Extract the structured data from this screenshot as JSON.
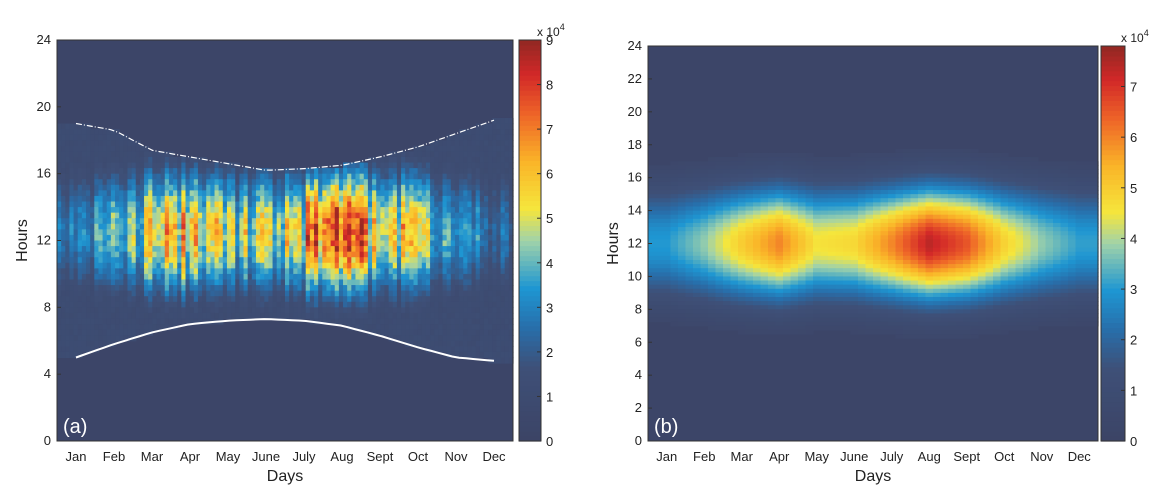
{
  "chart_data": [
    {
      "type": "heatmap",
      "panel_label": "(a)",
      "xlabel": "Days",
      "ylabel": "Hours",
      "categories": [
        "Jan",
        "Feb",
        "Mar",
        "Apr",
        "May",
        "June",
        "July",
        "Aug",
        "Sept",
        "Oct",
        "Nov",
        "Dec"
      ],
      "y_ticks": [
        0,
        4,
        8,
        12,
        16,
        20,
        24
      ],
      "ylim": [
        0,
        24
      ],
      "colorbar": {
        "ticks": [
          0,
          1,
          2,
          3,
          4,
          5,
          6,
          7,
          8,
          9
        ],
        "range": [
          0,
          9
        ],
        "exponent": "x 10",
        "exponent_power": "4"
      },
      "monthly_peak": [
        2.8,
        4.2,
        6.2,
        8.0,
        5.6,
        5.2,
        7.2,
        8.2,
        7.4,
        6.0,
        4.0,
        2.9
      ],
      "daylight_window": {
        "sunrise": [
          5.0,
          5.8,
          6.5,
          7.0,
          7.2,
          7.3,
          7.2,
          6.9,
          6.3,
          5.6,
          5.0,
          4.8
        ],
        "sunset": [
          19.0,
          18.6,
          17.4,
          17.0,
          16.6,
          16.2,
          16.3,
          16.5,
          17.0,
          17.6,
          18.4,
          19.2
        ]
      },
      "peak_hour": 12.5,
      "spread_hours": 2.6,
      "noisy": true
    },
    {
      "type": "heatmap",
      "panel_label": "(b)",
      "xlabel": "Days",
      "ylabel": "Hours",
      "categories": [
        "Jan",
        "Feb",
        "Mar",
        "Apr",
        "May",
        "June",
        "July",
        "Aug",
        "Sept",
        "Oct",
        "Nov",
        "Dec"
      ],
      "y_ticks": [
        0,
        2,
        4,
        6,
        8,
        10,
        12,
        14,
        16,
        18,
        20,
        22,
        24
      ],
      "ylim": [
        0,
        24
      ],
      "colorbar": {
        "ticks": [
          0,
          1,
          2,
          3,
          4,
          5,
          6,
          7
        ],
        "range": [
          0,
          7.8
        ],
        "exponent": "x 10",
        "exponent_power": "4"
      },
      "monthly_peak": [
        3.0,
        3.8,
        5.0,
        6.0,
        4.6,
        4.8,
        6.0,
        7.4,
        6.6,
        4.9,
        3.8,
        3.1
      ],
      "peak_hour": 12,
      "spread_hours": 2.4,
      "noisy": false
    }
  ]
}
